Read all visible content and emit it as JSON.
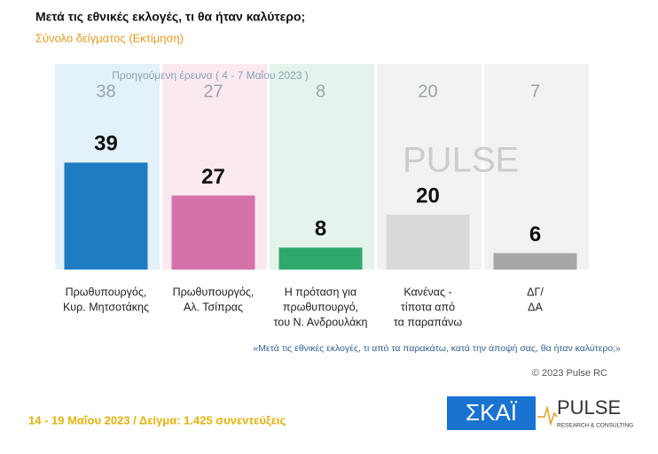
{
  "chart_data": {
    "type": "bar",
    "title": "Μετά τις εθνικές εκλογές, τι θα ήταν καλύτερο;",
    "subtitle": "Σύνολο δείγματος  (Εκτίμηση)",
    "categories": [
      [
        "Πρωθυπουργός,",
        "Κυρ. Μητσοτάκης"
      ],
      [
        "Πρωθυπουργός,",
        "Αλ. Τσίπρας"
      ],
      [
        "Η πρόταση για",
        "πρωθυπουργό,",
        "του Ν. Ανδρουλάκη"
      ],
      [
        "Κανένας -",
        "τίποτα από",
        "τα παραπάνω"
      ],
      [
        "ΔΓ/",
        "ΔΑ"
      ]
    ],
    "values": [
      39,
      27,
      8,
      20,
      6
    ],
    "colors": [
      "#1f7cc0",
      "#d473aa",
      "#2fa86e",
      "#d9d9d9",
      "#a6a6a6"
    ],
    "previous": {
      "label": "Προηγούμενη έρευνα  ( 4 - 7 Μαΐου 2023 )",
      "values": [
        38,
        27,
        8,
        20,
        7
      ],
      "colors": [
        "#e3f1fa",
        "#fbe9f2",
        "#e4f4ec",
        "#f2f2f2",
        "#f2f2f2"
      ]
    },
    "ylim": [
      0,
      75
    ],
    "question": "«Μετά τις εθνικές εκλογές, τι από τα παρακάτω, κατά την άποψή σας, θα ήταν καλύτερο;»",
    "copyright": "© 2023 Pulse RC",
    "footer": "14 - 19  Μαΐου  2023  /  Δείγμα:  1.425 συνεντεύξεις",
    "logos": {
      "skai": "ΣΚΑΪ",
      "pulse": "PULSE",
      "pulse_sub": "RESEARCH & CONSULTING"
    }
  }
}
